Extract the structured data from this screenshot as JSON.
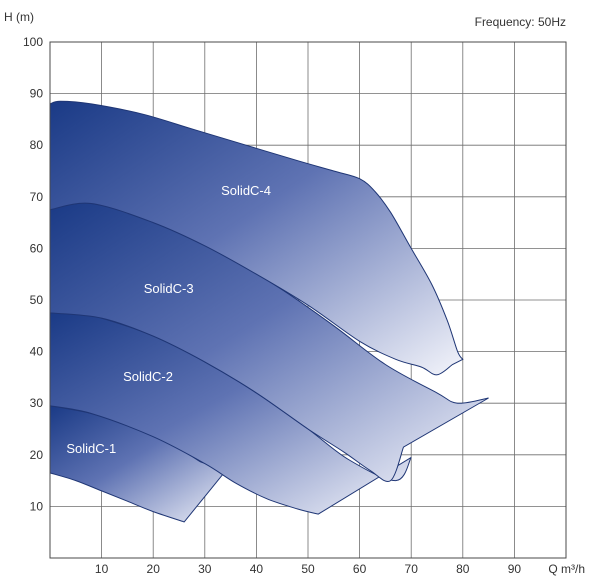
{
  "chart_data": {
    "type": "area",
    "title": "",
    "annotation": "Frequency: 50Hz",
    "ylabel": "H (m)",
    "xlabel": "Q m³/h",
    "xlim": [
      0,
      100
    ],
    "ylim": [
      0,
      100
    ],
    "x_ticks": [
      "10",
      "20",
      "30",
      "40",
      "50",
      "60",
      "70",
      "80",
      "90"
    ],
    "y_ticks": [
      "10",
      "20",
      "30",
      "40",
      "50",
      "60",
      "70",
      "80",
      "90",
      "100"
    ],
    "grid": true,
    "series": [
      {
        "name": "SolidC-1",
        "label_at": [
          8,
          21
        ],
        "upper": [
          [
            0,
            29.5
          ],
          [
            3,
            29
          ],
          [
            8,
            28
          ],
          [
            15,
            26
          ],
          [
            21,
            23.5
          ],
          [
            27,
            20
          ],
          [
            30.5,
            18.3
          ],
          [
            36,
            19.3
          ]
        ],
        "lower": [
          [
            0,
            16.5
          ],
          [
            5,
            15
          ],
          [
            10,
            13
          ],
          [
            15,
            11
          ],
          [
            20,
            9
          ],
          [
            26,
            7
          ]
        ]
      },
      {
        "name": "SolidC-2",
        "label_at": [
          19,
          35
        ],
        "upper": [
          [
            0,
            47.5
          ],
          [
            5,
            47.5
          ],
          [
            10,
            46.5
          ],
          [
            20,
            43
          ],
          [
            30,
            38
          ],
          [
            40,
            32
          ],
          [
            50,
            25
          ],
          [
            58,
            19
          ],
          [
            67,
            15
          ],
          [
            70,
            19.5
          ]
        ],
        "lower": [
          [
            0,
            29.5
          ],
          [
            8,
            28
          ],
          [
            20,
            23.5
          ],
          [
            30,
            18.3
          ],
          [
            36,
            14.5
          ],
          [
            42,
            11.5
          ],
          [
            48,
            9.5
          ],
          [
            52,
            8.5
          ]
        ]
      },
      {
        "name": "SolidC-3",
        "label_at": [
          23,
          52
        ],
        "upper": [
          [
            0,
            67.5
          ],
          [
            4,
            68.5
          ],
          [
            8,
            68.7
          ],
          [
            15,
            67
          ],
          [
            25,
            63
          ],
          [
            35,
            58
          ],
          [
            45,
            52
          ],
          [
            55,
            45
          ],
          [
            65,
            37.5
          ],
          [
            75,
            32
          ],
          [
            79,
            30
          ],
          [
            85,
            31
          ]
        ],
        "lower": [
          [
            0,
            47.5
          ],
          [
            10,
            46.5
          ],
          [
            20,
            43
          ],
          [
            30,
            38
          ],
          [
            40,
            32
          ],
          [
            50,
            25
          ],
          [
            57,
            20.5
          ],
          [
            62,
            17
          ],
          [
            66,
            15
          ],
          [
            68.5,
            21.5
          ]
        ]
      },
      {
        "name": "SolidC-4",
        "label_at": [
          38,
          71
        ],
        "upper": [
          [
            0,
            88
          ],
          [
            2,
            88.5
          ],
          [
            8,
            88
          ],
          [
            18,
            86
          ],
          [
            28,
            83
          ],
          [
            38,
            80
          ],
          [
            48,
            77
          ],
          [
            55,
            75
          ],
          [
            60,
            73.5
          ],
          [
            63,
            71
          ],
          [
            66,
            67
          ],
          [
            70,
            60
          ],
          [
            74,
            53
          ],
          [
            77,
            46
          ],
          [
            79,
            40
          ],
          [
            80,
            38.5
          ]
        ],
        "lower": [
          [
            0,
            67.5
          ],
          [
            8,
            68.7
          ],
          [
            20,
            65
          ],
          [
            30,
            60.5
          ],
          [
            40,
            55
          ],
          [
            50,
            49
          ],
          [
            60,
            42
          ],
          [
            67,
            38.5
          ],
          [
            72,
            37
          ],
          [
            75,
            35.5
          ],
          [
            78,
            37.5
          ]
        ]
      }
    ]
  }
}
